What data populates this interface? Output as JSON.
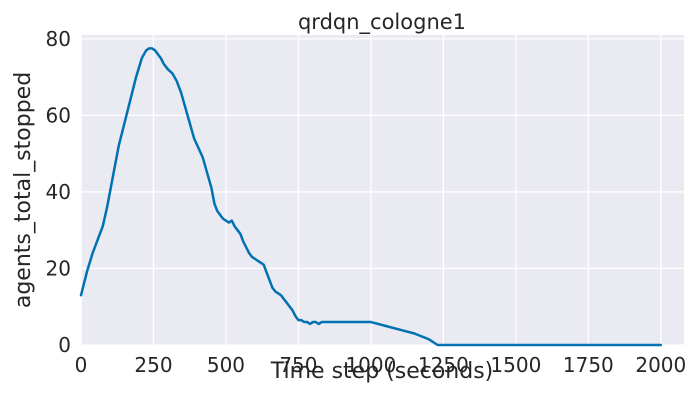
{
  "chart_data": {
    "type": "line",
    "title": "qrdqn_cologne1",
    "xlabel": "Time step (seconds)",
    "ylabel": "agents_total_stopped",
    "xlim": [
      0,
      2080
    ],
    "ylim": [
      0,
      81
    ],
    "xticks": [
      0,
      250,
      500,
      750,
      1000,
      1250,
      1500,
      1750,
      2000
    ],
    "yticks": [
      0,
      20,
      40,
      60,
      80
    ],
    "grid": true,
    "background_color": "#eaeaf2",
    "series": [
      {
        "color": "#0072b2",
        "x": [
          0,
          20,
          40,
          60,
          75,
          90,
          110,
          130,
          150,
          170,
          190,
          210,
          225,
          235,
          245,
          255,
          265,
          275,
          285,
          300,
          315,
          330,
          345,
          360,
          375,
          390,
          405,
          420,
          435,
          450,
          460,
          470,
          480,
          490,
          500,
          510,
          520,
          530,
          540,
          550,
          560,
          570,
          580,
          590,
          600,
          610,
          620,
          630,
          640,
          650,
          660,
          670,
          680,
          690,
          700,
          710,
          720,
          730,
          740,
          750,
          760,
          770,
          780,
          790,
          800,
          810,
          820,
          830,
          840,
          850,
          860,
          880,
          900,
          920,
          940,
          960,
          980,
          1000,
          1050,
          1100,
          1150,
          1200,
          1230,
          1300,
          1500,
          1750,
          2000
        ],
        "y": [
          13,
          19,
          24,
          28,
          31,
          36,
          44,
          52,
          58,
          64,
          70,
          75,
          77,
          77.5,
          77.5,
          77,
          76,
          75,
          73.5,
          72,
          71,
          69,
          66,
          62,
          58,
          54,
          51.5,
          49,
          45,
          41,
          37,
          35,
          34,
          33,
          32.5,
          32,
          32.5,
          31,
          30,
          29,
          27,
          25.5,
          24,
          23,
          22.5,
          22,
          21.5,
          21,
          19,
          17,
          15,
          14,
          13.5,
          13,
          12,
          11,
          10,
          9,
          7.5,
          6.5,
          6.5,
          6,
          6,
          5.5,
          6,
          6,
          5.5,
          6,
          6,
          6,
          6,
          6,
          6,
          6,
          6,
          6,
          6,
          6,
          5,
          4,
          3,
          1.5,
          0,
          0,
          0,
          0,
          0
        ]
      }
    ]
  }
}
